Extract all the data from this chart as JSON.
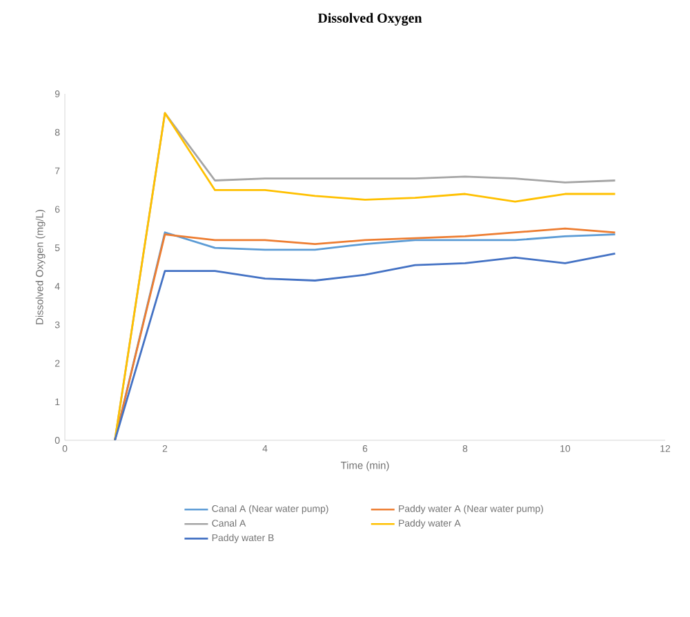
{
  "chart_data": {
    "type": "line",
    "title": "Dissolved Oxygen",
    "xlabel": "Time (min)",
    "ylabel": "Dissolved Oxygen (mg/L)",
    "x": [
      1,
      2,
      3,
      4,
      5,
      6,
      7,
      8,
      9,
      10,
      11
    ],
    "xlim": [
      0,
      12
    ],
    "xticks": [
      0,
      2,
      4,
      6,
      8,
      10,
      12
    ],
    "ylim": [
      0,
      9
    ],
    "yticks": [
      0,
      1,
      2,
      3,
      4,
      5,
      6,
      7,
      8,
      9
    ],
    "grid": false,
    "legend": "bottom",
    "marker": "none",
    "line_style": "solid",
    "series": [
      {
        "name": "Canal A (Near water pump)",
        "color": "#5b9bd5",
        "values": [
          0,
          5.4,
          5.0,
          4.95,
          4.95,
          5.1,
          5.2,
          5.2,
          5.2,
          5.3,
          5.35
        ]
      },
      {
        "name": "Paddy water A (Near water pump)",
        "color": "#ed7d31",
        "values": [
          0,
          5.35,
          5.2,
          5.2,
          5.1,
          5.2,
          5.25,
          5.3,
          5.4,
          5.5,
          5.4
        ]
      },
      {
        "name": "Canal A",
        "color": "#a5a5a5",
        "values": [
          0,
          8.5,
          6.75,
          6.8,
          6.8,
          6.8,
          6.8,
          6.85,
          6.8,
          6.7,
          6.75
        ]
      },
      {
        "name": "Paddy water A",
        "color": "#ffc000",
        "values": [
          0,
          8.5,
          6.5,
          6.5,
          6.35,
          6.25,
          6.3,
          6.4,
          6.2,
          6.4,
          6.4
        ]
      },
      {
        "name": "Paddy water B",
        "color": "#4472c4",
        "values": [
          0,
          4.4,
          4.4,
          4.2,
          4.15,
          4.3,
          4.55,
          4.6,
          4.75,
          4.6,
          4.85
        ]
      }
    ]
  }
}
